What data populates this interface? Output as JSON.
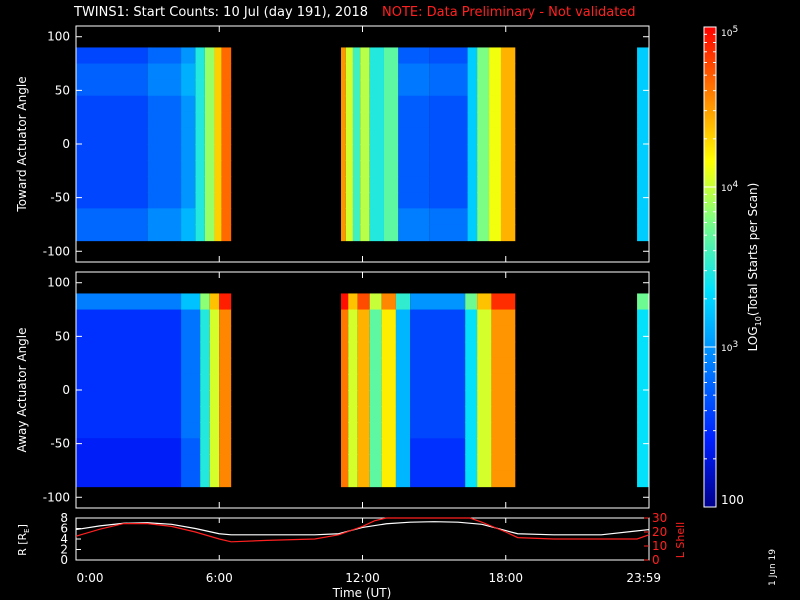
{
  "title": {
    "main": "TWINS1: Start Counts: 10 Jul (day 191), 2018",
    "note": "NOTE: Data Preliminary - Not validated"
  },
  "stamp": "1 Jun 19",
  "colors": {
    "note": "#ff2020",
    "orbit_L": "#ff2020",
    "orbit_R": "#ffffff",
    "background": "#000000",
    "colorscale": [
      "#00008c",
      "#0020ff",
      "#0080ff",
      "#00e0ff",
      "#80ff80",
      "#ffff00",
      "#ff8000",
      "#ff0000"
    ]
  },
  "chart_data": [
    {
      "type": "heatmap",
      "panel": "toward",
      "ylabel": "Toward Actuator Angle",
      "ylim": [
        -110,
        110
      ],
      "yticks": [
        100,
        50,
        0,
        -50,
        -100
      ],
      "xlim": [
        0,
        24
      ],
      "coverage_hours": [
        [
          0,
          6.5
        ],
        [
          11.1,
          18.4
        ],
        [
          23.5,
          24
        ]
      ],
      "colorbar_label": "LOG10(Total Starts per Scan)",
      "colorbar_ticks": [
        "10^5",
        "10^4",
        "10^3",
        "100"
      ],
      "log10_range": [
        2,
        5
      ],
      "time_profile": [
        {
          "t": [
            0,
            3.0
          ],
          "v": 2.6
        },
        {
          "t": [
            3.0,
            4.4
          ],
          "v": 2.75
        },
        {
          "t": [
            4.4,
            5.0
          ],
          "v": 2.95
        },
        {
          "t": [
            5.0,
            5.4
          ],
          "v": 3.4
        },
        {
          "t": [
            5.4,
            5.8
          ],
          "v": 3.8
        },
        {
          "t": [
            5.8,
            6.1
          ],
          "v": 4.3
        },
        {
          "t": [
            6.1,
            6.5
          ],
          "v": 4.65
        },
        {
          "t": [
            11.1,
            11.3
          ],
          "v": 4.5
        },
        {
          "t": [
            11.3,
            11.6
          ],
          "v": 4.0
        },
        {
          "t": [
            11.6,
            11.9
          ],
          "v": 3.5
        },
        {
          "t": [
            11.9,
            12.3
          ],
          "v": 3.9
        },
        {
          "t": [
            12.3,
            12.9
          ],
          "v": 3.4
        },
        {
          "t": [
            12.9,
            13.5
          ],
          "v": 3.6
        },
        {
          "t": [
            13.5,
            14.8
          ],
          "v": 2.7
        },
        {
          "t": [
            14.8,
            16.4
          ],
          "v": 2.65
        },
        {
          "t": [
            16.4,
            16.8
          ],
          "v": 3.2
        },
        {
          "t": [
            16.8,
            17.3
          ],
          "v": 3.7
        },
        {
          "t": [
            17.3,
            17.8
          ],
          "v": 4.1
        },
        {
          "t": [
            17.8,
            18.4
          ],
          "v": 4.4
        },
        {
          "t": [
            23.5,
            24
          ],
          "v": 3.2
        }
      ]
    },
    {
      "type": "heatmap",
      "panel": "away",
      "ylabel": "Away Actuator Angle",
      "ylim": [
        -110,
        110
      ],
      "yticks": [
        100,
        50,
        0,
        -50,
        -100
      ],
      "xlim": [
        0,
        24
      ],
      "coverage_hours": [
        [
          0,
          6.5
        ],
        [
          11.1,
          18.4
        ],
        [
          23.5,
          24
        ]
      ],
      "time_profile": [
        {
          "t": [
            0,
            4.4
          ],
          "v": 2.5
        },
        {
          "t": [
            4.4,
            5.2
          ],
          "v": 2.8
        },
        {
          "t": [
            5.2,
            5.6
          ],
          "v": 3.4
        },
        {
          "t": [
            5.6,
            6.0
          ],
          "v": 4.0
        },
        {
          "t": [
            6.0,
            6.5
          ],
          "v": 4.55
        },
        {
          "t": [
            11.1,
            11.4
          ],
          "v": 4.6
        },
        {
          "t": [
            11.4,
            11.8
          ],
          "v": 4.0
        },
        {
          "t": [
            11.8,
            12.3
          ],
          "v": 4.4
        },
        {
          "t": [
            12.3,
            12.8
          ],
          "v": 3.6
        },
        {
          "t": [
            12.8,
            13.4
          ],
          "v": 4.2
        },
        {
          "t": [
            13.4,
            14.0
          ],
          "v": 3.1
        },
        {
          "t": [
            14.0,
            16.3
          ],
          "v": 2.6
        },
        {
          "t": [
            16.3,
            16.8
          ],
          "v": 3.3
        },
        {
          "t": [
            16.8,
            17.4
          ],
          "v": 4.0
        },
        {
          "t": [
            17.4,
            18.4
          ],
          "v": 4.5
        },
        {
          "t": [
            23.5,
            24
          ],
          "v": 3.3
        }
      ]
    },
    {
      "type": "line",
      "panel": "orbit",
      "xlabel": "Time (UT)",
      "xticks": [
        "0:00",
        "6:00",
        "12:00",
        "18:00",
        "23:59"
      ],
      "xtick_hours": [
        0,
        6,
        12,
        18,
        24
      ],
      "ylabel_left": "R [RE]",
      "ylim_left": [
        0,
        8
      ],
      "yticks_left": [
        0,
        2,
        4,
        6,
        8
      ],
      "ylabel_right": "L Shell",
      "ylim_right": [
        0,
        30
      ],
      "yticks_right": [
        0,
        10,
        20,
        30
      ],
      "series": [
        {
          "name": "R [RE]",
          "axis": "left",
          "x": [
            0,
            1,
            2,
            3,
            4,
            5,
            6,
            6.5,
            8,
            10,
            11,
            12,
            13,
            14,
            15,
            16,
            17,
            18,
            18.5,
            20,
            22,
            24
          ],
          "y": [
            5.8,
            6.5,
            7.0,
            7.1,
            6.8,
            6.0,
            5.0,
            4.8,
            4.8,
            4.8,
            5.0,
            6.2,
            6.9,
            7.2,
            7.3,
            7.2,
            6.8,
            5.6,
            5.0,
            4.8,
            4.8,
            5.8
          ]
        },
        {
          "name": "L Shell",
          "axis": "right",
          "x": [
            0,
            1,
            2,
            3,
            4,
            5,
            6,
            6.5,
            8,
            10,
            11,
            12,
            12.5,
            13,
            16.5,
            17,
            18,
            18.5,
            20,
            22,
            23.5,
            24
          ],
          "y": [
            17,
            22,
            26,
            26,
            24,
            20,
            15,
            13,
            14,
            15,
            18,
            24,
            28,
            31,
            31,
            27,
            20,
            16,
            15,
            15,
            15,
            18
          ]
        }
      ]
    }
  ]
}
